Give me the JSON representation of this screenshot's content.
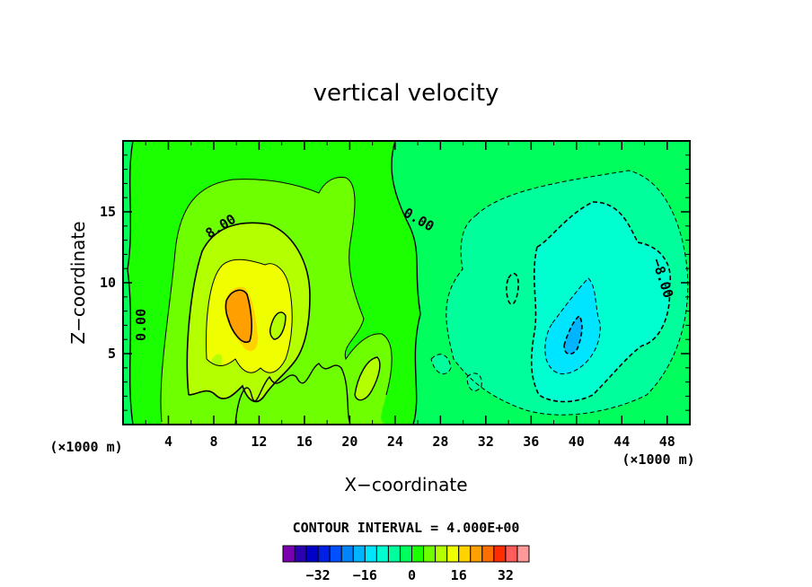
{
  "chart_data": {
    "type": "heatmap",
    "title": "vertical velocity",
    "xlabel": "X−coordinate",
    "ylabel": "Z−coordinate",
    "x_unit": "(×1000 m)",
    "z_unit": "(×1000 m)",
    "xlim": [
      0,
      50
    ],
    "ylim": [
      0,
      20
    ],
    "x_ticks": [
      "4",
      "8",
      "12",
      "16",
      "20",
      "24",
      "28",
      "32",
      "36",
      "40",
      "44",
      "48"
    ],
    "y_ticks": [
      "5",
      "10",
      "15"
    ],
    "contour_interval_text": "CONTOUR INTERVAL = 4.000E+00",
    "contour_labels": [
      "8.00",
      "0.00",
      "0.00",
      "−8.00"
    ],
    "colorbar": {
      "ticks": [
        "−32",
        "−16",
        "0",
        "16",
        "32"
      ],
      "levels": [
        -40,
        -36,
        -32,
        -28,
        -24,
        -20,
        -16,
        -12,
        -8,
        -4,
        0,
        4,
        8,
        12,
        16,
        20,
        24,
        28,
        32,
        36,
        40
      ],
      "colors": [
        "#7a00b0",
        "#2a00b0",
        "#0000c8",
        "#0020e6",
        "#0050ff",
        "#0085ff",
        "#00b4ff",
        "#00e5ff",
        "#00ffd0",
        "#00ff9c",
        "#00ff5c",
        "#1cff00",
        "#6eff00",
        "#b4ff00",
        "#f0ff00",
        "#ffd200",
        "#ffa000",
        "#ff6e00",
        "#ff2d00",
        "#ff5c5c",
        "#ff9999"
      ]
    },
    "features": [
      {
        "kind": "updraft",
        "x": 11,
        "z": 8,
        "peak": 22
      },
      {
        "kind": "updraft",
        "x": 14,
        "z": 7.5,
        "peak": 14
      },
      {
        "kind": "downdraft",
        "x": 40,
        "z": 7,
        "peak": -20
      }
    ]
  }
}
